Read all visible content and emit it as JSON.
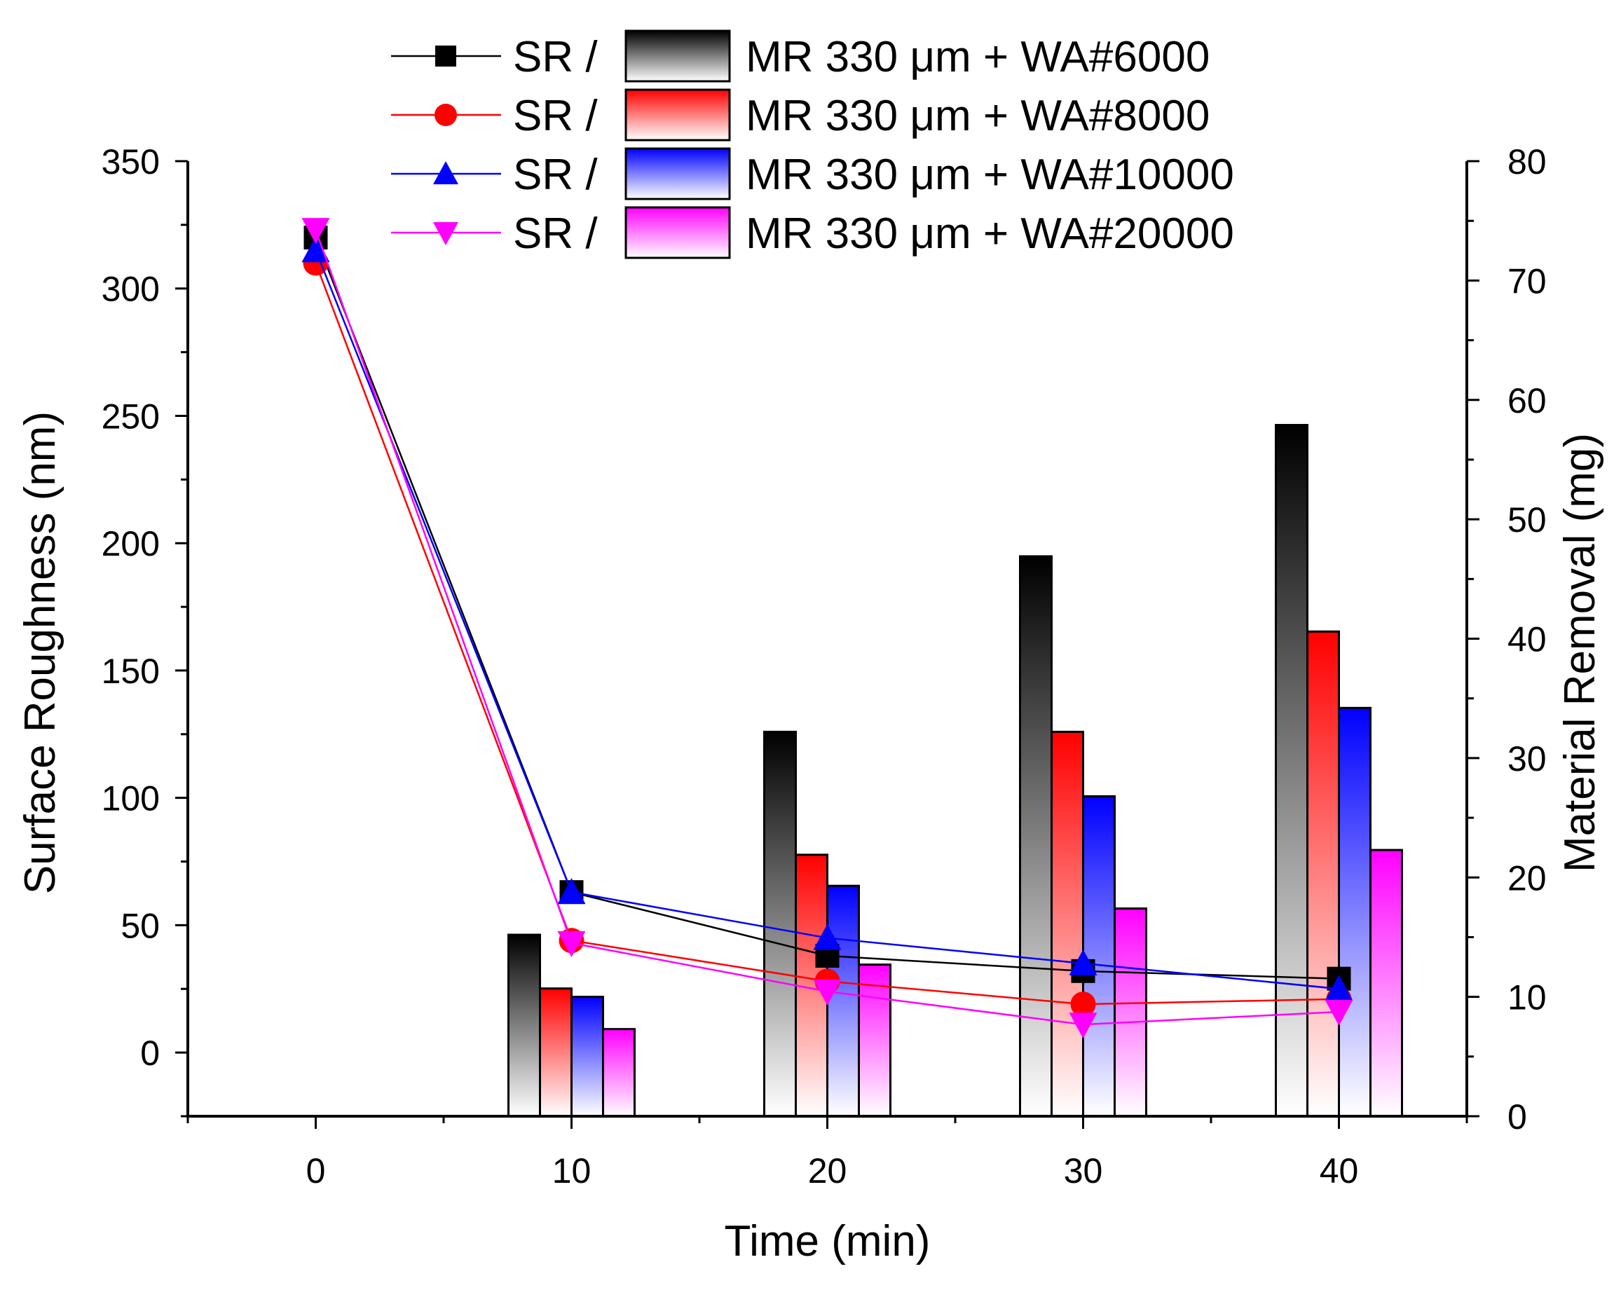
{
  "chart_data": {
    "type": "bar+line",
    "title": "",
    "xlabel": "Time (min)",
    "ylabel_left": "Surface Roughness (nm)",
    "ylabel_right": "Material Removal (mg)",
    "x_ticks": [
      0,
      10,
      20,
      30,
      40
    ],
    "xlim": [
      -5,
      45
    ],
    "ylim_left": [
      -25,
      350
    ],
    "y_ticks_left": [
      0,
      50,
      100,
      150,
      200,
      250,
      300,
      350
    ],
    "ylim_right": [
      0,
      80
    ],
    "y_ticks_right": [
      0,
      10,
      20,
      30,
      40,
      50,
      60,
      70,
      80
    ],
    "x": [
      0,
      10,
      20,
      30,
      40
    ],
    "line_series": [
      {
        "name": "SR / ",
        "color": "#000000",
        "marker": "square",
        "values": [
          320,
          63,
          38,
          32,
          29
        ]
      },
      {
        "name": "SR / ",
        "color": "#ff0000",
        "marker": "circle",
        "values": [
          310,
          44,
          28,
          19,
          21
        ]
      },
      {
        "name": "SR / ",
        "color": "#0000ff",
        "marker": "triangle-up",
        "values": [
          315,
          63,
          45,
          35,
          25
        ]
      },
      {
        "name": "SR / ",
        "color": "#ff00ff",
        "marker": "triangle-down",
        "values": [
          323,
          43,
          24,
          11,
          16
        ]
      }
    ],
    "bar_series": [
      {
        "name": "MR 330 μm + WA#6000",
        "color": "#000000",
        "values": [
          0,
          15.2,
          32.2,
          46.9,
          57.9
        ]
      },
      {
        "name": "MR 330 μm + WA#8000",
        "color": "#ff0000",
        "values": [
          0,
          10.7,
          21.9,
          32.2,
          40.6
        ]
      },
      {
        "name": "MR 330 μm + WA#10000",
        "color": "#0000ff",
        "values": [
          0,
          10.0,
          19.3,
          26.8,
          34.2
        ]
      },
      {
        "name": "MR 330 μm + WA#20000",
        "color": "#ff00ff",
        "values": [
          0,
          7.3,
          12.7,
          17.4,
          22.3
        ]
      }
    ],
    "legend_position": "top-center"
  }
}
